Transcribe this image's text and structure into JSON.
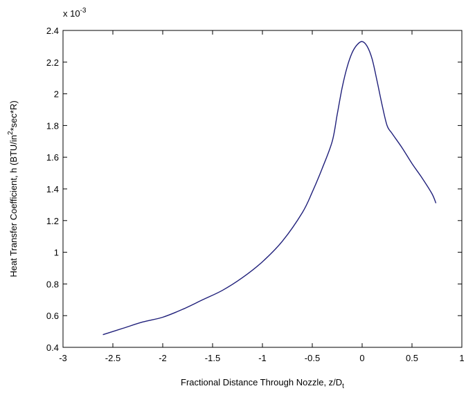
{
  "chart_data": {
    "type": "line",
    "title": "",
    "xlabel": "Fractional Distance Through Nozzle, z/D",
    "xlabel_subscript": "t",
    "ylabel": "Heat Transfer Coefficient, h (BTU/in",
    "ylabel_superscript": "2",
    "ylabel_suffix": "*sec*R)",
    "y_multiplier_base": "x 10",
    "y_multiplier_exponent": "-3",
    "xlim": [
      -3,
      1
    ],
    "ylim": [
      0.4,
      2.4
    ],
    "xticks": [
      -3,
      -2.5,
      -2,
      -1.5,
      -1,
      -0.5,
      0,
      0.5,
      1
    ],
    "xtick_labels": [
      "-3",
      "-2.5",
      "-2",
      "-1.5",
      "-1",
      "-0.5",
      "0",
      "0.5",
      "1"
    ],
    "yticks": [
      0.4,
      0.6,
      0.8,
      1,
      1.2,
      1.4,
      1.6,
      1.8,
      2,
      2.2,
      2.4
    ],
    "ytick_labels": [
      "0.4",
      "0.6",
      "0.8",
      "1",
      "1.2",
      "1.4",
      "1.6",
      "1.8",
      "2",
      "2.2",
      "2.4"
    ],
    "grid": false,
    "legend": "none",
    "line_color": "#1f1f7a",
    "series": [
      {
        "x": [
          -2.6,
          -2.4,
          -2.2,
          -2.0,
          -1.8,
          -1.6,
          -1.4,
          -1.2,
          -1.0,
          -0.8,
          -0.6,
          -0.5,
          -0.4,
          -0.3,
          -0.25,
          -0.2,
          -0.15,
          -0.1,
          -0.05,
          0.0,
          0.05,
          0.1,
          0.15,
          0.2,
          0.25,
          0.3,
          0.4,
          0.5,
          0.6,
          0.7,
          0.74
        ],
        "y": [
          0.48,
          0.52,
          0.56,
          0.59,
          0.64,
          0.7,
          0.76,
          0.84,
          0.94,
          1.07,
          1.25,
          1.38,
          1.53,
          1.7,
          1.87,
          2.04,
          2.17,
          2.26,
          2.31,
          2.33,
          2.3,
          2.22,
          2.08,
          1.93,
          1.8,
          1.75,
          1.66,
          1.56,
          1.47,
          1.37,
          1.31
        ]
      }
    ]
  }
}
